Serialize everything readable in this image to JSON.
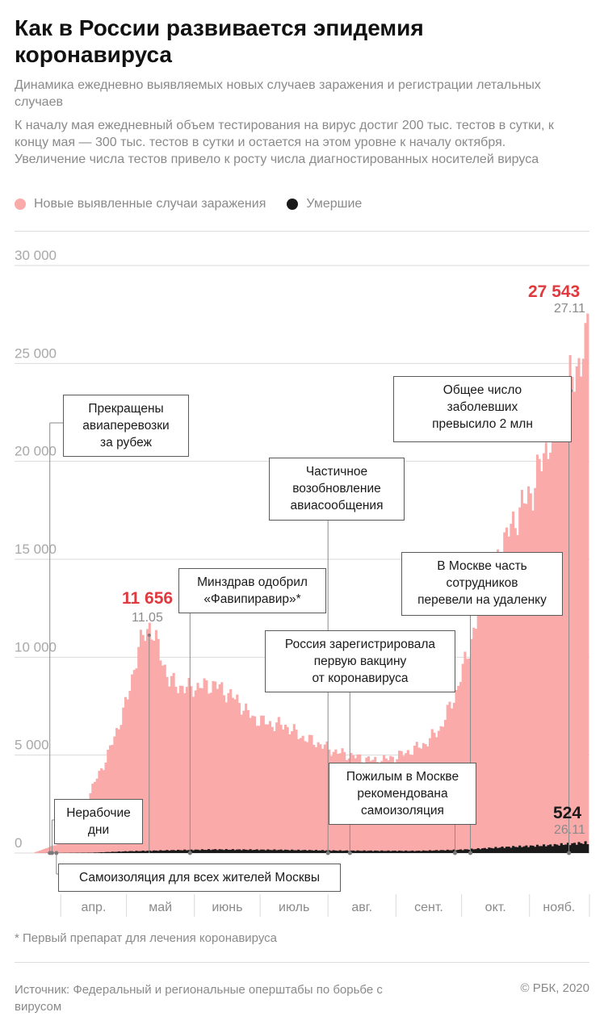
{
  "header": {
    "title": "Как в России развивается эпидемия коронавируса",
    "subtitle": "Динамика ежедневно выявляемых новых случаев заражения и регистрации летальных случаев",
    "note": "К началу мая ежедневный объем тестирования на вирус достиг 200 тыс. тестов в сутки, к концу мая — 300 тыс. тестов в сутки и остается на этом уровне к началу октября. Увеличение числа тестов привело к росту числа диагностированных носителей вируса"
  },
  "legend": {
    "cases_label": "Новые выявленные случаи заражения",
    "deaths_label": "Умершие"
  },
  "colors": {
    "cases": "#fbaaaa",
    "deaths": "#1a1a1a",
    "highlight": "#e0393e",
    "grid": "#d9d9d9",
    "axis_text": "#a8a8a8"
  },
  "chart_data": {
    "type": "bar",
    "ylim": [
      0,
      30000
    ],
    "y_ticks": [
      {
        "value": 0,
        "label": "0"
      },
      {
        "value": 5000,
        "label": "5 000"
      },
      {
        "value": 10000,
        "label": "10 000"
      },
      {
        "value": 15000,
        "label": "15 000"
      },
      {
        "value": 20000,
        "label": "20 000"
      },
      {
        "value": 25000,
        "label": "25 000"
      },
      {
        "value": 30000,
        "label": "30 000"
      }
    ],
    "x_labels": [
      "апр.",
      "май",
      "июнь",
      "июль",
      "авг.",
      "сент.",
      "окт.",
      "нояб."
    ],
    "series": [
      {
        "name": "Новые выявленные случаи заражения",
        "key": "cases",
        "anchors": [
          {
            "date": "2020-03-20",
            "value": 50
          },
          {
            "date": "2020-03-31",
            "value": 500
          },
          {
            "date": "2020-04-05",
            "value": 650
          },
          {
            "date": "2020-04-10",
            "value": 1800
          },
          {
            "date": "2020-04-15",
            "value": 3400
          },
          {
            "date": "2020-04-20",
            "value": 4500
          },
          {
            "date": "2020-04-25",
            "value": 5900
          },
          {
            "date": "2020-05-01",
            "value": 7900
          },
          {
            "date": "2020-05-06",
            "value": 10500
          },
          {
            "date": "2020-05-11",
            "value": 11656
          },
          {
            "date": "2020-05-15",
            "value": 10500
          },
          {
            "date": "2020-05-20",
            "value": 8800
          },
          {
            "date": "2020-05-27",
            "value": 8400
          },
          {
            "date": "2020-06-03",
            "value": 8500
          },
          {
            "date": "2020-06-10",
            "value": 8600
          },
          {
            "date": "2020-06-15",
            "value": 8200
          },
          {
            "date": "2020-06-20",
            "value": 7800
          },
          {
            "date": "2020-06-27",
            "value": 6900
          },
          {
            "date": "2020-07-05",
            "value": 6600
          },
          {
            "date": "2020-07-12",
            "value": 6500
          },
          {
            "date": "2020-07-20",
            "value": 5900
          },
          {
            "date": "2020-07-27",
            "value": 5600
          },
          {
            "date": "2020-08-03",
            "value": 5200
          },
          {
            "date": "2020-08-10",
            "value": 5000
          },
          {
            "date": "2020-08-17",
            "value": 4800
          },
          {
            "date": "2020-08-24",
            "value": 4700
          },
          {
            "date": "2020-08-31",
            "value": 4900
          },
          {
            "date": "2020-09-07",
            "value": 5200
          },
          {
            "date": "2020-09-14",
            "value": 5600
          },
          {
            "date": "2020-09-21",
            "value": 6400
          },
          {
            "date": "2020-09-28",
            "value": 8200
          },
          {
            "date": "2020-10-05",
            "value": 10900
          },
          {
            "date": "2020-10-12",
            "value": 13600
          },
          {
            "date": "2020-10-19",
            "value": 15700
          },
          {
            "date": "2020-10-26",
            "value": 17300
          },
          {
            "date": "2020-11-02",
            "value": 18600
          },
          {
            "date": "2020-11-09",
            "value": 21000
          },
          {
            "date": "2020-11-16",
            "value": 22700
          },
          {
            "date": "2020-11-20",
            "value": 24300
          },
          {
            "date": "2020-11-23",
            "value": 25100
          },
          {
            "date": "2020-11-26",
            "value": 25500
          },
          {
            "date": "2020-11-27",
            "value": 27543
          }
        ]
      },
      {
        "name": "Умершие",
        "key": "deaths",
        "anchors": [
          {
            "date": "2020-03-20",
            "value": 0
          },
          {
            "date": "2020-04-15",
            "value": 20
          },
          {
            "date": "2020-05-01",
            "value": 90
          },
          {
            "date": "2020-05-20",
            "value": 140
          },
          {
            "date": "2020-06-10",
            "value": 180
          },
          {
            "date": "2020-07-10",
            "value": 160
          },
          {
            "date": "2020-08-10",
            "value": 120
          },
          {
            "date": "2020-09-10",
            "value": 110
          },
          {
            "date": "2020-10-01",
            "value": 170
          },
          {
            "date": "2020-10-20",
            "value": 300
          },
          {
            "date": "2020-11-10",
            "value": 400
          },
          {
            "date": "2020-11-26",
            "value": 524
          },
          {
            "date": "2020-11-27",
            "value": 500
          }
        ]
      }
    ],
    "highlights": [
      {
        "value_label": "11 656",
        "date_label": "11.05",
        "color": "#e0393e"
      },
      {
        "value_label": "27 543",
        "date_label": "27.11",
        "color": "#e0393e"
      },
      {
        "value_label": "524",
        "date_label": "26.11",
        "color": "#1a1a1a"
      }
    ],
    "annotations": [
      {
        "id": "flights-stopped",
        "date": "2020-03-27",
        "text": "Прекращены\nавиаперевозки\nза рубеж"
      },
      {
        "id": "non-working-days",
        "date": "2020-03-28",
        "text": "Нерабочие\nдни"
      },
      {
        "id": "moscow-isolation",
        "date": "2020-03-30",
        "text": "Самоизоляция для всех жителей Москвы"
      },
      {
        "id": "favipiravir",
        "date": "2020-05-30",
        "text": "Минздрав одобрил\n«Фавипиравир»*"
      },
      {
        "id": "flights-resumed",
        "date": "2020-08-01",
        "text": "Частичное\nвозобновление\nавиасообщения"
      },
      {
        "id": "vaccine",
        "date": "2020-08-11",
        "text": "Россия зарегистрировала\nпервую вакцину\nот коронавируса"
      },
      {
        "id": "elderly-isolation",
        "date": "2020-09-28",
        "text": "Пожилым в Москве\nрекомендована\nсамоизоляция"
      },
      {
        "id": "remote-work",
        "date": "2020-10-05",
        "text": "В Москве часть\nсотрудников\nперевели на удаленку"
      },
      {
        "id": "two-million",
        "date": "2020-11-19",
        "text": "Общее число\nзаболевших\nпревысило 2 млн"
      }
    ]
  },
  "footnote": "* Первый препарат для лечения коронавируса",
  "source": "Источник: Федеральный и региональные оперштабы по борьбе с вирусом",
  "copyright": "© РБК, 2020"
}
